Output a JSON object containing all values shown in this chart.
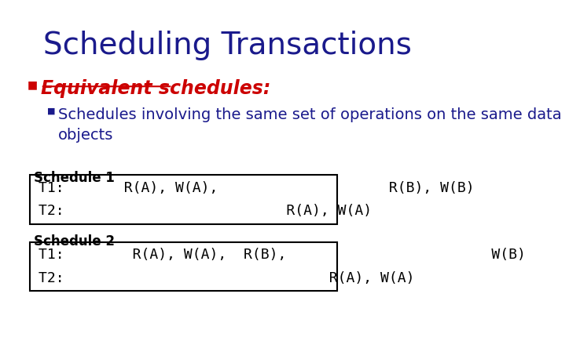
{
  "title": "Scheduling Transactions",
  "title_color": "#1a1a8c",
  "title_fontsize": 28,
  "bullet1_text": "Equivalent schedules:",
  "bullet1_color": "#cc0000",
  "bullet1_fontsize": 17,
  "bullet2_text": "Schedules involving the same set of operations on the same data\nobjects",
  "bullet2_color": "#1a1a8c",
  "bullet2_fontsize": 14,
  "schedule1_label": "Schedule 1",
  "schedule1_line1": "T1:       R(A), W(A),                    R(B), W(B)",
  "schedule1_line2": "T2:                          R(A), W(A)",
  "schedule2_label": "Schedule 2",
  "schedule2_line1": "T1:        R(A), W(A),  R(B),                        W(B)",
  "schedule2_line2": "T2:                               R(A), W(A)",
  "schedule_label_fontsize": 12,
  "schedule_text_fontsize": 13,
  "box_color": "#000000",
  "bg_color": "#ffffff"
}
